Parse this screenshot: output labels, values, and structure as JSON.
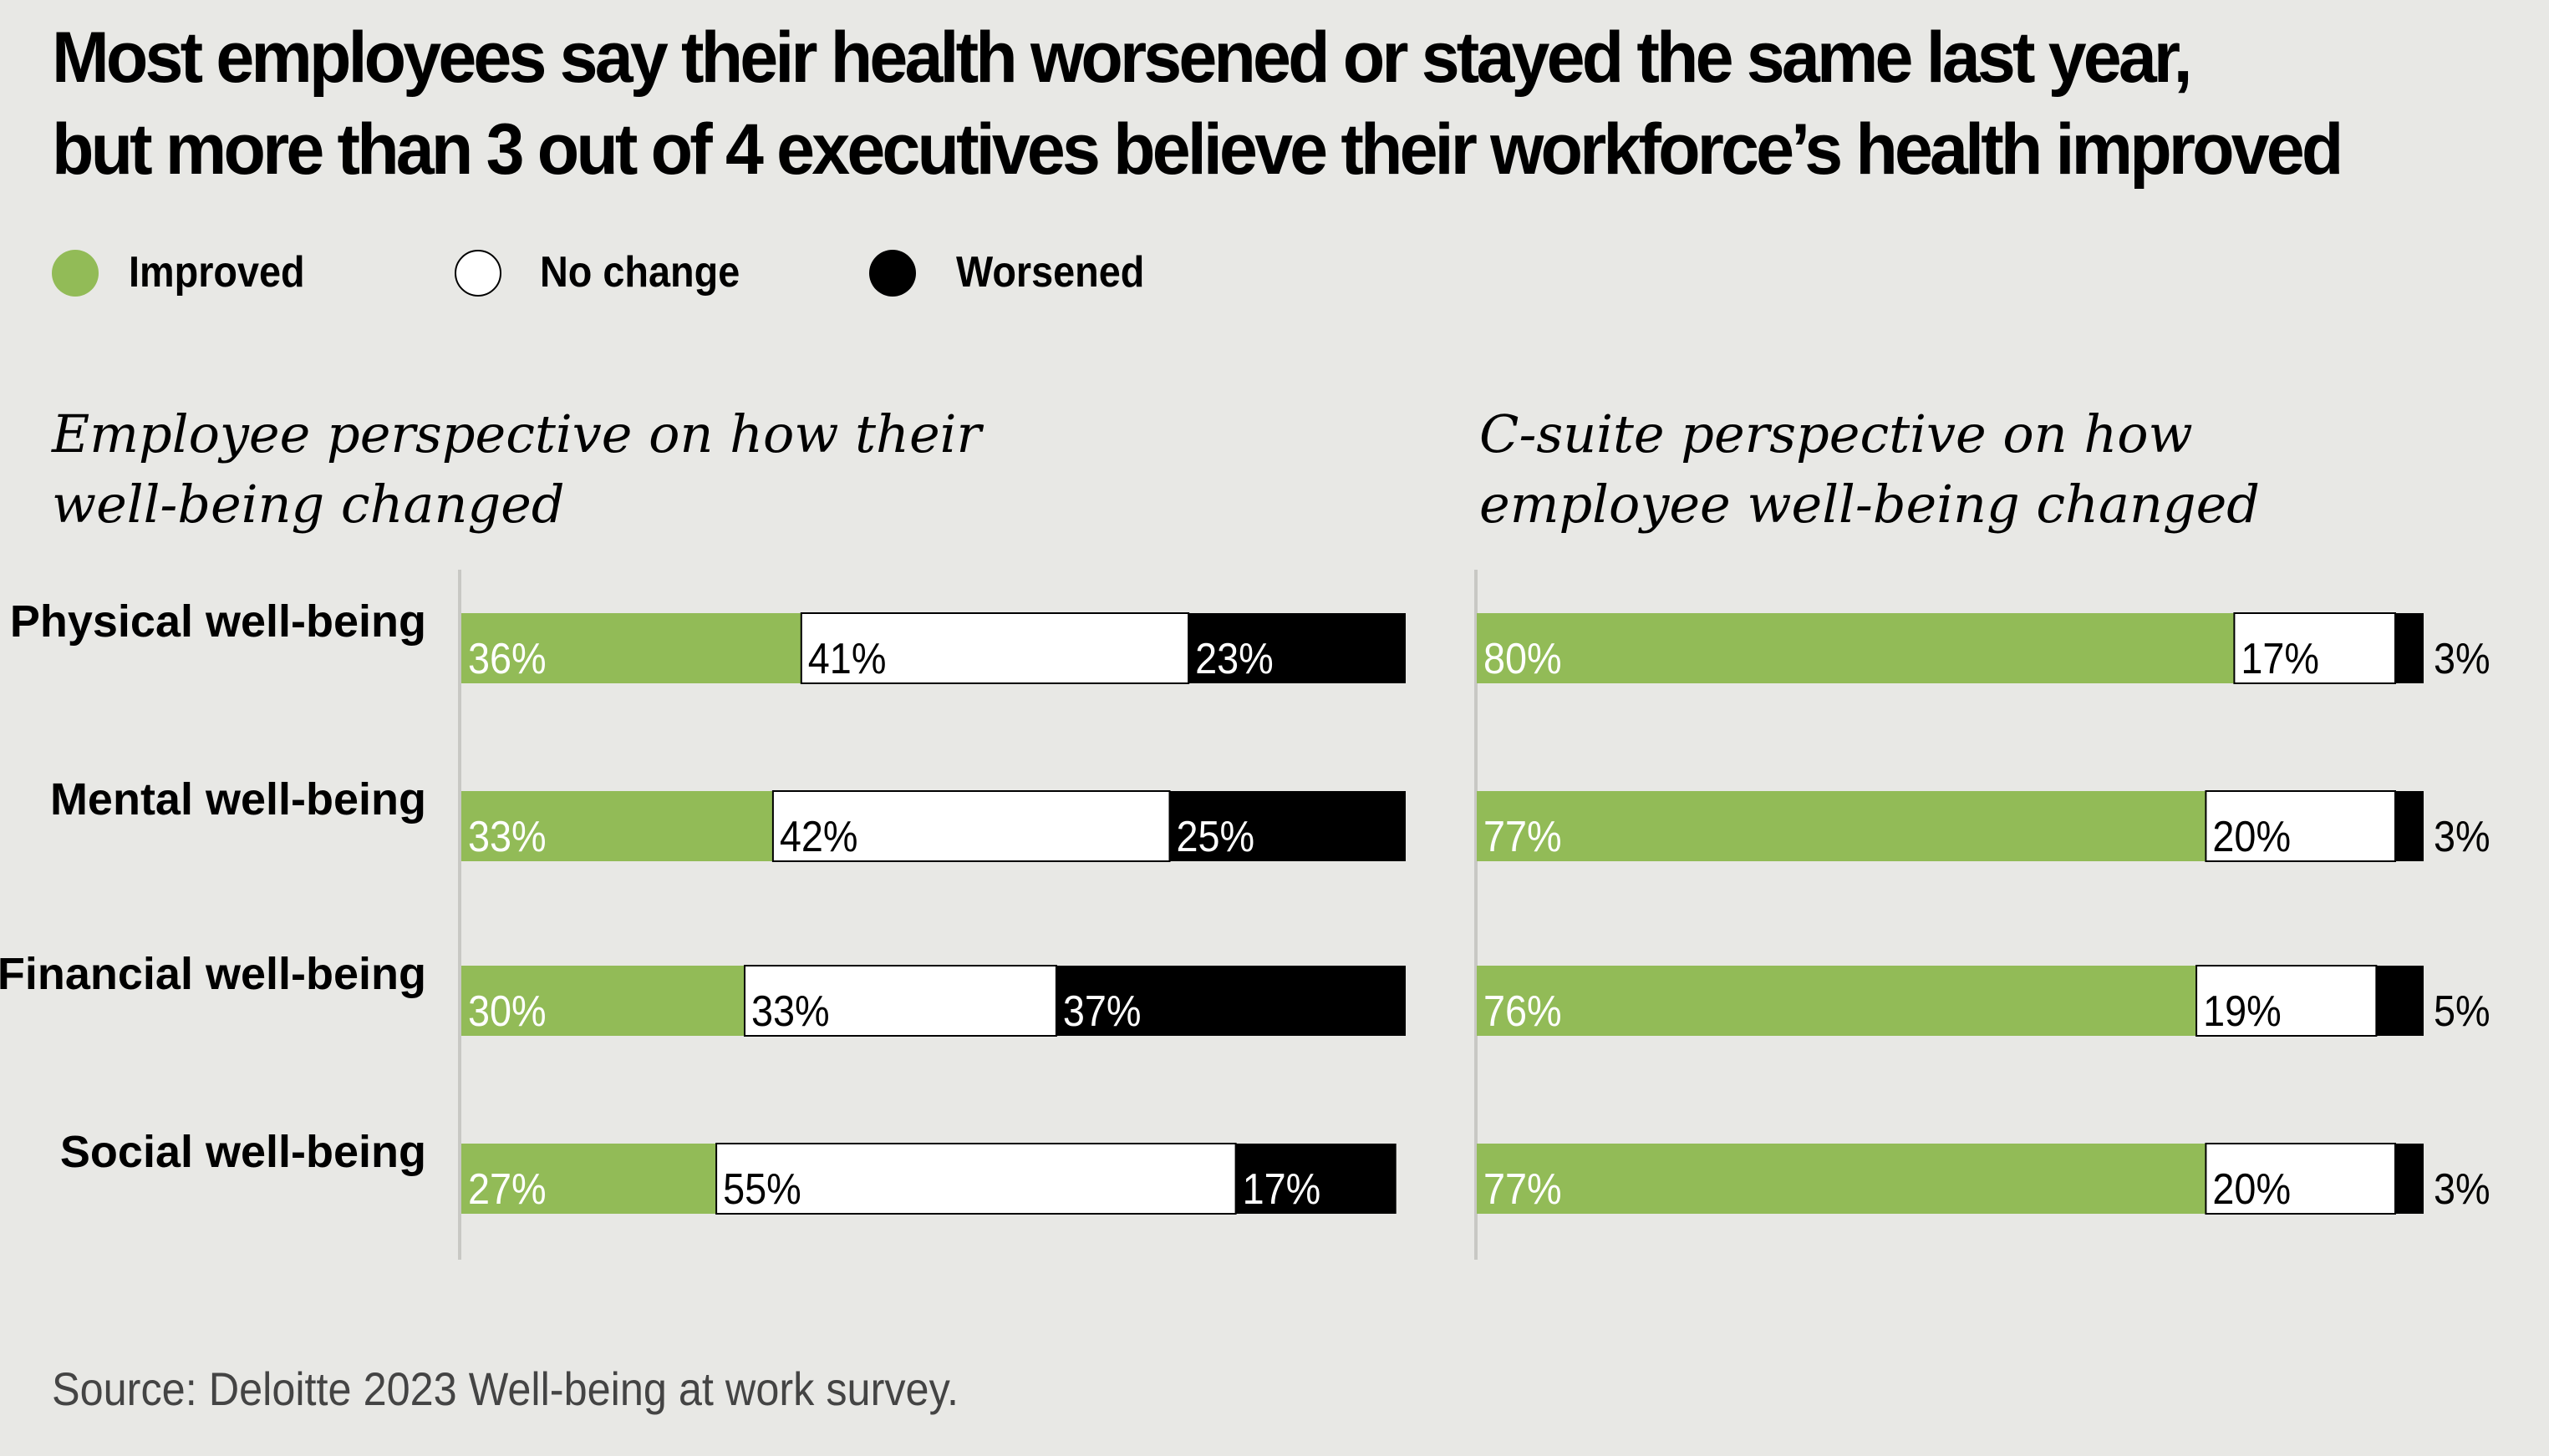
{
  "title": {
    "line1": "Most employees say their health worsened or stayed the same last year,",
    "line2": "but more than 3 out of 4 executives believe their workforce’s health improved"
  },
  "legend": [
    {
      "label": "Improved",
      "color": "#92bb57"
    },
    {
      "label": "No change",
      "color": "#ffffff"
    },
    {
      "label": "Worsened",
      "color": "#000000"
    }
  ],
  "source": "Source: Deloitte 2023 Well-being at work survey.",
  "chart_data": [
    {
      "type": "bar",
      "stacked": true,
      "orientation": "horizontal",
      "title": [
        "Employee perspective on how their",
        "well-being changed"
      ],
      "categories": [
        "Physical well-being",
        "Mental well-being",
        "Financial well-being",
        "Social well-being"
      ],
      "series": [
        {
          "name": "Improved",
          "values": [
            36,
            33,
            30,
            27
          ],
          "labels": [
            "36%",
            "33%",
            "30%",
            "27%"
          ]
        },
        {
          "name": "No change",
          "values": [
            41,
            42,
            33,
            55
          ],
          "labels": [
            "41%",
            "42%",
            "33%",
            "55%"
          ]
        },
        {
          "name": "Worsened",
          "values": [
            23,
            25,
            37,
            17
          ],
          "labels": [
            "23%",
            "25%",
            "37%",
            "17%"
          ]
        }
      ],
      "xlim": [
        0,
        100
      ]
    },
    {
      "type": "bar",
      "stacked": true,
      "orientation": "horizontal",
      "title": [
        "C-suite perspective on how",
        "employee well-being changed"
      ],
      "categories": [
        "Physical well-being",
        "Mental well-being",
        "Financial well-being",
        "Social well-being"
      ],
      "series": [
        {
          "name": "Improved",
          "values": [
            80,
            77,
            76,
            77
          ],
          "labels": [
            "80%",
            "77%",
            "76%",
            "77%"
          ]
        },
        {
          "name": "No change",
          "values": [
            17,
            20,
            19,
            20
          ],
          "labels": [
            "17%",
            "20%",
            "19%",
            "20%"
          ]
        },
        {
          "name": "Worsened",
          "values": [
            3,
            3,
            5,
            3
          ],
          "labels": [
            "3%",
            "3%",
            "5%",
            "3%"
          ]
        }
      ],
      "xlim": [
        0,
        100
      ]
    }
  ]
}
